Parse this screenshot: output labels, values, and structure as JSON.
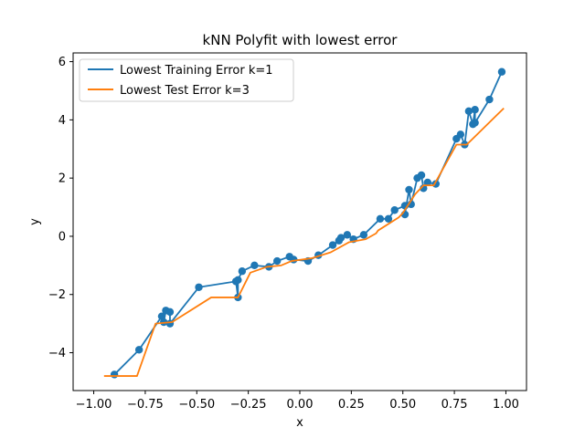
{
  "chart_data": {
    "type": "line",
    "title": "kNN Polyfit with lowest error",
    "xlabel": "x",
    "ylabel": "y",
    "xlim": [
      -1.1,
      1.1
    ],
    "ylim": [
      -5.3,
      6.3
    ],
    "xticks": [
      -1.0,
      -0.75,
      -0.5,
      -0.25,
      0.0,
      0.25,
      0.5,
      0.75,
      1.0
    ],
    "xtick_labels": [
      "−1.00",
      "−0.75",
      "−0.50",
      "−0.25",
      "0.00",
      "0.25",
      "0.50",
      "0.75",
      "1.00"
    ],
    "yticks": [
      -4,
      -2,
      0,
      2,
      4,
      6
    ],
    "ytick_labels": [
      "−4",
      "−2",
      "0",
      "2",
      "4",
      "6"
    ],
    "grid": false,
    "legend_position": "top-left",
    "series": [
      {
        "name": "Lowest Training Error k=1",
        "color": "#1f77b4",
        "markers": true,
        "x": [
          -0.9,
          -0.78,
          -0.67,
          -0.66,
          -0.65,
          -0.63,
          -0.63,
          -0.49,
          -0.31,
          -0.3,
          -0.3,
          -0.28,
          -0.22,
          -0.15,
          -0.11,
          -0.05,
          -0.03,
          0.04,
          0.09,
          0.16,
          0.19,
          0.2,
          0.23,
          0.26,
          0.31,
          0.39,
          0.43,
          0.46,
          0.51,
          0.51,
          0.53,
          0.54,
          0.57,
          0.59,
          0.6,
          0.62,
          0.66,
          0.76,
          0.78,
          0.8,
          0.82,
          0.84,
          0.85,
          0.85,
          0.92,
          0.98
        ],
        "y": [
          -4.75,
          -3.9,
          -2.75,
          -2.95,
          -2.55,
          -2.6,
          -3.0,
          -1.75,
          -1.55,
          -2.1,
          -1.5,
          -1.2,
          -1.0,
          -1.05,
          -0.85,
          -0.7,
          -0.8,
          -0.85,
          -0.65,
          -0.3,
          -0.15,
          -0.05,
          0.05,
          -0.1,
          0.05,
          0.6,
          0.6,
          0.9,
          1.05,
          0.75,
          1.6,
          1.1,
          2.0,
          2.1,
          1.65,
          1.85,
          1.8,
          3.35,
          3.5,
          3.15,
          4.3,
          3.85,
          4.35,
          3.9,
          4.7,
          5.65
        ]
      },
      {
        "name": "Lowest Test Error k=3",
        "color": "#ff7f0e",
        "markers": false,
        "x": [
          -0.95,
          -0.79,
          -0.7,
          -0.62,
          -0.43,
          -0.3,
          -0.24,
          -0.16,
          -0.09,
          -0.04,
          0.06,
          0.15,
          0.24,
          0.28,
          0.32,
          0.37,
          0.38,
          0.48,
          0.5,
          0.56,
          0.6,
          0.65,
          0.76,
          0.81,
          0.99
        ],
        "y": [
          -4.8,
          -4.8,
          -3.0,
          -2.95,
          -2.1,
          -2.1,
          -1.25,
          -1.05,
          -1.0,
          -0.85,
          -0.75,
          -0.55,
          -0.2,
          -0.15,
          -0.1,
          0.1,
          0.2,
          0.65,
          0.8,
          1.45,
          1.75,
          1.75,
          3.15,
          3.15,
          4.4
        ]
      }
    ]
  }
}
